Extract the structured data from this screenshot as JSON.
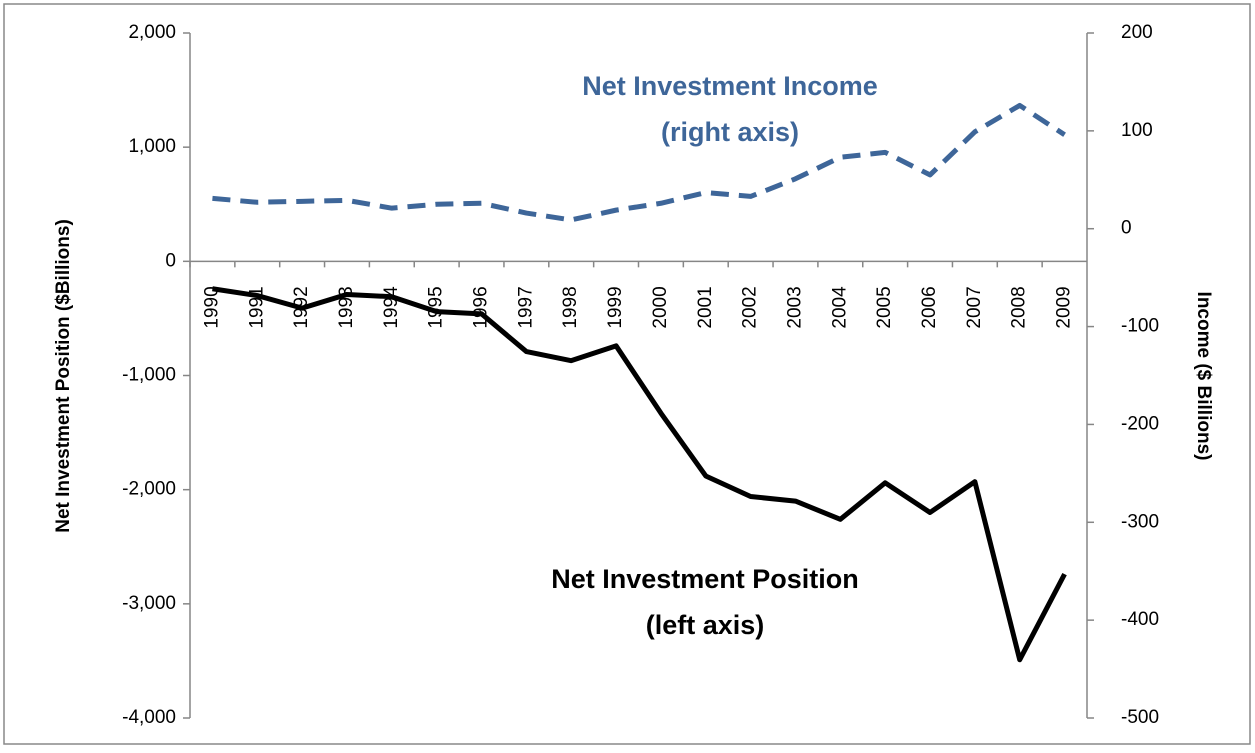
{
  "chart_data": {
    "type": "line",
    "y_label": "Net Investment Position ($Billions)",
    "y2_label": "Income ($ Billions)",
    "annotations": [
      {
        "lines": [
          "Net Investment Income",
          "(right axis)"
        ],
        "color": "#3e6699"
      },
      {
        "lines": [
          "Net Investment Position",
          "(left axis)"
        ],
        "color": "#000000"
      }
    ],
    "categories": [
      "1990",
      "1991",
      "1992",
      "1993",
      "1994",
      "1995",
      "1996",
      "1997",
      "1998",
      "1999",
      "2000",
      "2001",
      "2002",
      "2003",
      "2004",
      "2005",
      "2006",
      "2007",
      "2008",
      "2009"
    ],
    "series": [
      {
        "color": "#000000",
        "dashed": false,
        "values": [
          -240,
          -300,
          -410,
          -290,
          -310,
          -440,
          -460,
          -790,
          -870,
          -740,
          -1330,
          -1880,
          -2060,
          -2100,
          -2260,
          -1940,
          -2200,
          -1930,
          -3490,
          -2740
        ]
      },
      {
        "color": "#3e6699",
        "dashed": true,
        "axis": "y2",
        "values": [
          31,
          27,
          28,
          29,
          21,
          25,
          26,
          16,
          9,
          19,
          26,
          37,
          33,
          51,
          73,
          78,
          55,
          99,
          126,
          96
        ]
      }
    ],
    "ylim": [
      -4000,
      2000
    ],
    "yticks": [
      {
        "value": 2000,
        "label": "2,000"
      },
      {
        "value": 1000,
        "label": "1,000"
      },
      0,
      {
        "value": -1000,
        "label": "-1,000"
      },
      {
        "value": -2000,
        "label": "-2,000"
      },
      {
        "value": -3000,
        "label": "-3,000"
      },
      {
        "value": -4000,
        "label": "-4,000"
      }
    ],
    "y2lim": [
      -500,
      200
    ],
    "y2ticks": [
      200,
      100,
      0,
      -100,
      -200,
      -300,
      -400,
      -500
    ]
  }
}
